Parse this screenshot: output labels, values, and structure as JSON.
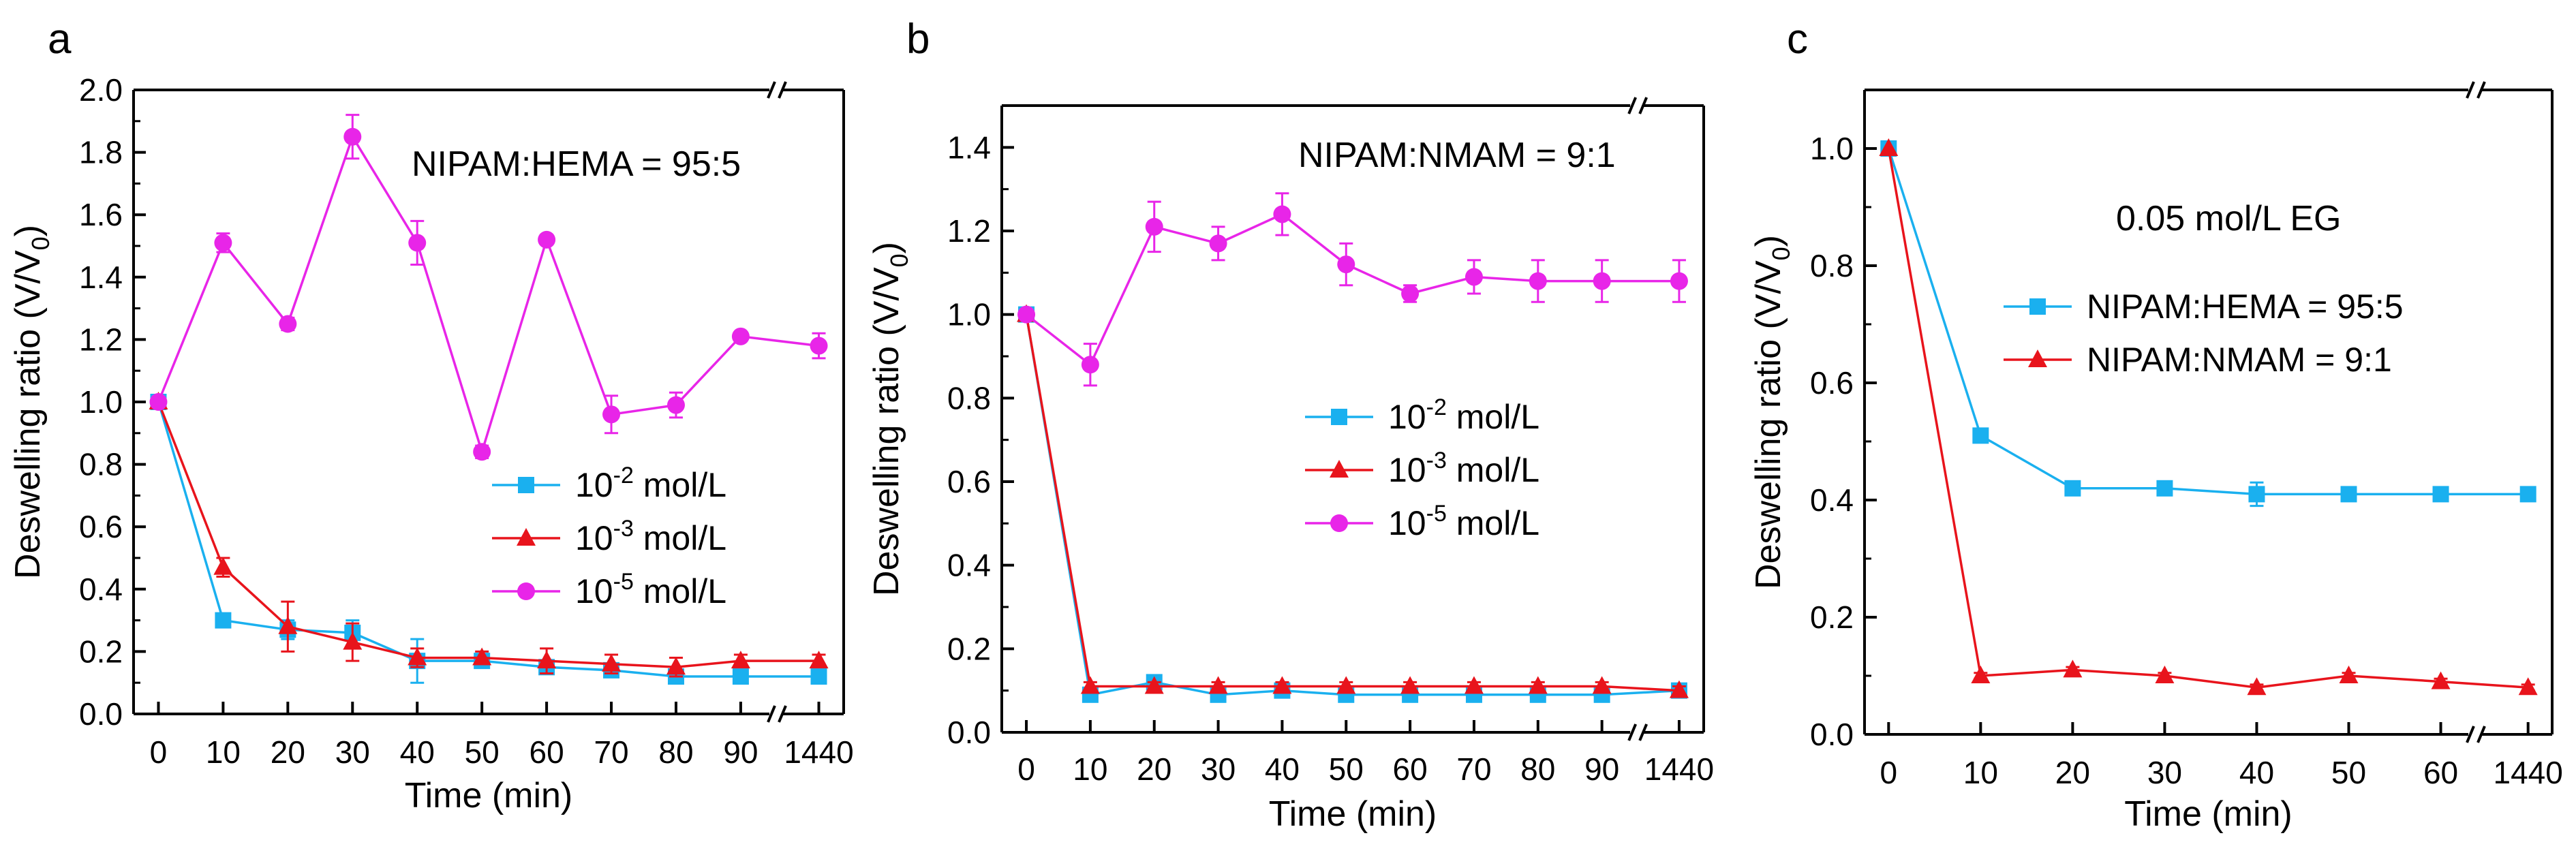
{
  "colors": {
    "blue": "#1ab0ef",
    "red": "#e8141c",
    "magenta": "#e825e8",
    "axis": "#000000"
  },
  "chart_data": [
    {
      "panel": "a",
      "type": "line",
      "xlabel": "Time (min)",
      "ylabel_main": "Deswelling ratio (V/V",
      "ylabel_sub": "0",
      "ylabel_end": ")",
      "ylim": [
        0,
        2.0
      ],
      "yticks": [
        "0.0",
        "0.2",
        "0.4",
        "0.6",
        "0.8",
        "1.0",
        "1.2",
        "1.4",
        "1.6",
        "1.8",
        "2.0"
      ],
      "xticks": [
        "0",
        "10",
        "20",
        "30",
        "40",
        "50",
        "60",
        "70",
        "80",
        "90",
        "1440"
      ],
      "annotation": "NIPAM:HEMA = 95:5",
      "legend_position": "center-right",
      "series": [
        {
          "name": "10-2 mol/L",
          "base": "10",
          "exp": "-2",
          "unit": " mol/L",
          "color": "blue",
          "marker": "square",
          "values": [
            1.0,
            0.3,
            0.27,
            0.26,
            0.17,
            0.17,
            0.15,
            0.14,
            0.12,
            0.12,
            0.12
          ],
          "errors": [
            0,
            0.02,
            0.03,
            0.04,
            0.07,
            0.02,
            0.02,
            0.02,
            0.02,
            0.01,
            0.01
          ]
        },
        {
          "name": "10-3 mol/L",
          "base": "10",
          "exp": "-3",
          "unit": " mol/L",
          "color": "red",
          "marker": "triangle",
          "values": [
            1.0,
            0.47,
            0.28,
            0.23,
            0.18,
            0.18,
            0.17,
            0.16,
            0.15,
            0.17,
            0.17
          ],
          "errors": [
            0,
            0.03,
            0.08,
            0.06,
            0.03,
            0.02,
            0.04,
            0.03,
            0.03,
            0.02,
            0.02
          ]
        },
        {
          "name": "10-5 mol/L",
          "base": "10",
          "exp": "-5",
          "unit": " mol/L",
          "color": "magenta",
          "marker": "circle",
          "values": [
            1.0,
            1.51,
            1.25,
            1.85,
            1.51,
            0.84,
            1.52,
            0.96,
            0.99,
            1.21,
            1.18
          ],
          "errors": [
            0,
            0.03,
            0.02,
            0.07,
            0.07,
            0.02,
            0.01,
            0.06,
            0.04,
            0.01,
            0.04
          ]
        }
      ]
    },
    {
      "panel": "b",
      "type": "line",
      "xlabel": "Time (min)",
      "ylabel_main": "Deswelling ratio (V/V",
      "ylabel_sub": "0",
      "ylabel_end": ")",
      "ylim": [
        0,
        1.5
      ],
      "yticks": [
        "0.0",
        "0.2",
        "0.4",
        "0.6",
        "0.8",
        "1.0",
        "1.2",
        "1.4"
      ],
      "xticks": [
        "0",
        "10",
        "20",
        "30",
        "40",
        "50",
        "60",
        "70",
        "80",
        "90",
        "1440"
      ],
      "annotation": "NIPAM:NMAM = 9:1",
      "legend_position": "center-right",
      "series": [
        {
          "name": "10-2 mol/L",
          "base": "10",
          "exp": "-2",
          "unit": " mol/L",
          "color": "blue",
          "marker": "square",
          "values": [
            1.0,
            0.09,
            0.12,
            0.09,
            0.1,
            0.09,
            0.09,
            0.09,
            0.09,
            0.09,
            0.1
          ],
          "errors": [
            0,
            0.01,
            0.01,
            0.01,
            0.01,
            0.01,
            0.01,
            0.01,
            0.01,
            0.01,
            0.01
          ]
        },
        {
          "name": "10-3 mol/L",
          "base": "10",
          "exp": "-3",
          "unit": " mol/L",
          "color": "red",
          "marker": "triangle",
          "values": [
            1.0,
            0.11,
            0.11,
            0.11,
            0.11,
            0.11,
            0.11,
            0.11,
            0.11,
            0.11,
            0.1
          ],
          "errors": [
            0,
            0.01,
            0.01,
            0.01,
            0.01,
            0.01,
            0.01,
            0.01,
            0.01,
            0.01,
            0.01
          ]
        },
        {
          "name": "10-5 mol/L",
          "base": "10",
          "exp": "-5",
          "unit": " mol/L",
          "color": "magenta",
          "marker": "circle",
          "values": [
            1.0,
            0.88,
            1.21,
            1.17,
            1.24,
            1.12,
            1.05,
            1.09,
            1.08,
            1.08,
            1.08
          ],
          "errors": [
            0,
            0.05,
            0.06,
            0.04,
            0.05,
            0.05,
            0.02,
            0.04,
            0.05,
            0.05,
            0.05
          ]
        }
      ]
    },
    {
      "panel": "c",
      "type": "line",
      "xlabel": "Time (min)",
      "ylabel_main": "Deswelling ratio (V/V",
      "ylabel_sub": "0",
      "ylabel_end": ")",
      "ylim": [
        0,
        1.1
      ],
      "yticks": [
        "0.0",
        "0.2",
        "0.4",
        "0.6",
        "0.8",
        "1.0"
      ],
      "xticks": [
        "0",
        "10",
        "20",
        "30",
        "40",
        "50",
        "60",
        "1440"
      ],
      "annotation": "0.05 mol/L EG",
      "legend_position": "top-right",
      "series": [
        {
          "name": "NIPAM:HEMA = 95:5",
          "color": "blue",
          "marker": "square",
          "values": [
            1.0,
            0.51,
            0.42,
            0.42,
            0.41,
            0.41,
            0.41,
            0.41
          ],
          "errors": [
            0,
            0.01,
            0.01,
            0.01,
            0.02,
            0.01,
            0.01,
            0.01
          ]
        },
        {
          "name": "NIPAM:NMAM = 9:1",
          "color": "red",
          "marker": "triangle",
          "values": [
            1.0,
            0.1,
            0.11,
            0.1,
            0.08,
            0.1,
            0.09,
            0.08
          ],
          "errors": [
            0,
            0.005,
            0.005,
            0.005,
            0.005,
            0.005,
            0.005,
            0.005
          ]
        }
      ]
    }
  ]
}
